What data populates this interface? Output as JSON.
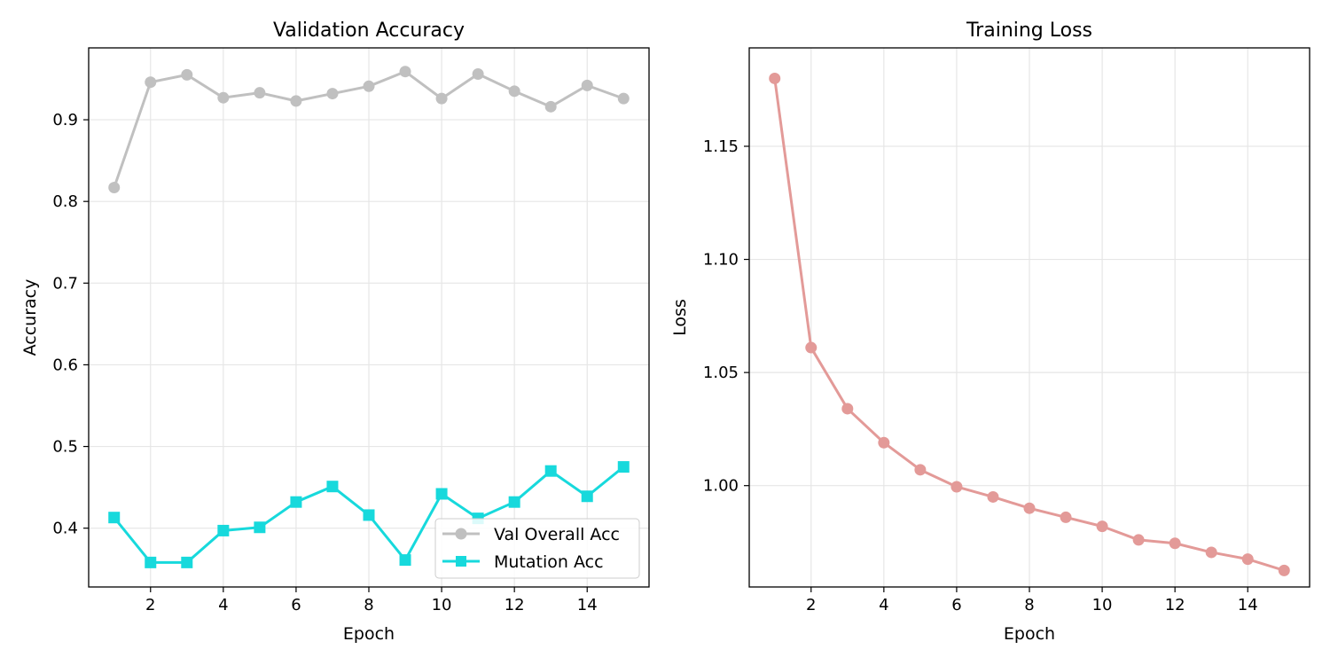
{
  "chart_data": [
    {
      "type": "line",
      "title": "Validation Accuracy",
      "xlabel": "Epoch",
      "ylabel": "Accuracy",
      "x": [
        1,
        2,
        3,
        4,
        5,
        6,
        7,
        8,
        9,
        10,
        11,
        12,
        13,
        14,
        15
      ],
      "xlim": [
        0.3,
        15.7
      ],
      "ylim": [
        0.328,
        0.988
      ],
      "xticks": [
        2,
        4,
        6,
        8,
        10,
        12,
        14
      ],
      "yticks": [
        0.4,
        0.5,
        0.6,
        0.7,
        0.8,
        0.9
      ],
      "grid": true,
      "legend_position": "lower-right",
      "series": [
        {
          "name": "Val Overall Acc",
          "color": "#c0c0c0",
          "marker": "circle",
          "values": [
            0.817,
            0.946,
            0.955,
            0.927,
            0.933,
            0.923,
            0.932,
            0.941,
            0.959,
            0.926,
            0.956,
            0.935,
            0.916,
            0.942,
            0.926
          ]
        },
        {
          "name": "Mutation Acc",
          "color": "#17d9dc",
          "marker": "square",
          "values": [
            0.413,
            0.358,
            0.358,
            0.397,
            0.401,
            0.432,
            0.451,
            0.416,
            0.361,
            0.442,
            0.412,
            0.432,
            0.47,
            0.439,
            0.475
          ]
        }
      ]
    },
    {
      "type": "line",
      "title": "Training Loss",
      "xlabel": "Epoch",
      "ylabel": "Loss",
      "x": [
        1,
        2,
        3,
        4,
        5,
        6,
        7,
        8,
        9,
        10,
        11,
        12,
        13,
        14,
        15
      ],
      "xlim": [
        0.3,
        15.7
      ],
      "ylim": [
        0.9552,
        1.1935
      ],
      "xticks": [
        2,
        4,
        6,
        8,
        10,
        12,
        14
      ],
      "yticks": [
        1.0,
        1.05,
        1.1,
        1.15
      ],
      "ytick_labels": [
        "1.00",
        "1.05",
        "1.10",
        "1.15"
      ],
      "grid": true,
      "series": [
        {
          "color": "#e39a98",
          "marker": "circle",
          "values": [
            1.18,
            1.061,
            1.034,
            1.019,
            1.007,
            0.9995,
            0.995,
            0.99,
            0.986,
            0.982,
            0.976,
            0.9745,
            0.9705,
            0.9675,
            0.9625
          ]
        }
      ]
    }
  ]
}
